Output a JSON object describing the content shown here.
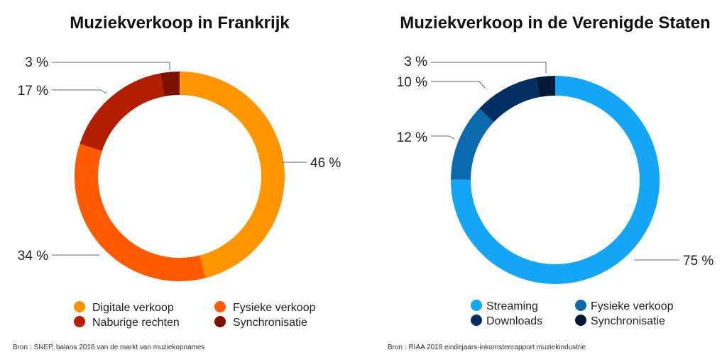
{
  "chart_data": [
    {
      "type": "pie",
      "title": "Muziekverkoop in Frankrijk",
      "series": [
        {
          "name": "Digitale verkoop",
          "value": 46,
          "label": "46 %",
          "color": "#ff9500"
        },
        {
          "name": "Fysieke verkoop",
          "value": 34,
          "label": "34 %",
          "color": "#ff5a00"
        },
        {
          "name": "Naburige rechten",
          "value": 17,
          "label": "17 %",
          "color": "#b31e00"
        },
        {
          "name": "Synchronisatie",
          "value": 3,
          "label": "3 %",
          "color": "#7c1100"
        }
      ],
      "source": "Bron : SNEP, balans 2018 van de markt van muziekopnames"
    },
    {
      "type": "pie",
      "title": "Muziekverkoop in de Verenigde Staten",
      "series": [
        {
          "name": "Streaming",
          "value": 75,
          "label": "75 %",
          "color": "#15a5f5"
        },
        {
          "name": "Fysieke verkoop",
          "value": 12,
          "label": "12 %",
          "color": "#0b6aae"
        },
        {
          "name": "Downloads",
          "value": 10,
          "label": "10 %",
          "color": "#022f62"
        },
        {
          "name": "Synchronisatie",
          "value": 3,
          "label": "3 %",
          "color": "#041a36"
        }
      ],
      "source": "Bron : RIAA 2018 eindejaars-inkomstenrapport muziekindustrie"
    }
  ]
}
